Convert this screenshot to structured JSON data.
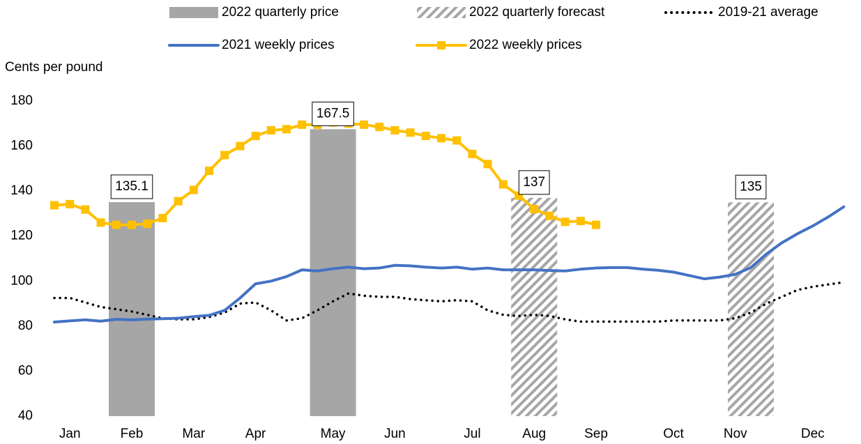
{
  "chart_data": {
    "type": "combo",
    "y_label": "Cents per pound",
    "categories": [
      null,
      "Jan",
      null,
      null,
      null,
      "Feb",
      null,
      null,
      null,
      "Mar",
      null,
      null,
      null,
      "Apr",
      null,
      null,
      null,
      null,
      "May",
      null,
      null,
      null,
      "Jun",
      null,
      null,
      null,
      null,
      "Jul",
      null,
      null,
      null,
      "Aug",
      null,
      null,
      null,
      "Sep",
      null,
      null,
      null,
      null,
      "Oct",
      null,
      null,
      null,
      "Nov",
      null,
      null,
      null,
      null,
      "Dec",
      null,
      null
    ],
    "ylim": [
      40,
      180
    ],
    "yticks": [
      40,
      60,
      80,
      100,
      120,
      140,
      160,
      180
    ],
    "series": [
      {
        "name": "2022 quarterly price",
        "type": "bar",
        "style": "solid",
        "color": "#a6a6a6",
        "values": [
          null,
          null,
          null,
          null,
          null,
          135.1,
          null,
          null,
          null,
          null,
          null,
          null,
          null,
          null,
          null,
          null,
          null,
          null,
          167.5,
          null,
          null,
          null,
          null,
          null,
          null,
          null,
          null,
          null,
          null,
          null,
          null,
          null,
          null,
          null,
          null,
          null,
          null,
          null,
          null,
          null,
          null,
          null,
          null,
          null,
          null,
          null,
          null,
          null,
          null,
          null,
          null,
          null
        ]
      },
      {
        "name": "2022 quarterly forecast",
        "type": "bar",
        "style": "hatched",
        "color": "#a6a6a6",
        "values": [
          null,
          null,
          null,
          null,
          null,
          null,
          null,
          null,
          null,
          null,
          null,
          null,
          null,
          null,
          null,
          null,
          null,
          null,
          null,
          null,
          null,
          null,
          null,
          null,
          null,
          null,
          null,
          null,
          null,
          null,
          null,
          137,
          null,
          null,
          null,
          null,
          null,
          null,
          null,
          null,
          null,
          null,
          null,
          null,
          null,
          135,
          null,
          null,
          null,
          null,
          null,
          null
        ]
      },
      {
        "name": "2019-21 average",
        "type": "line",
        "style": "dotted",
        "color": "#000000",
        "values": [
          92.5,
          92.5,
          90.5,
          88.5,
          87.5,
          86.5,
          85,
          83.5,
          83,
          83,
          84,
          86,
          90,
          90.5,
          87,
          82.5,
          83.5,
          87,
          91,
          94.5,
          93.5,
          93,
          93,
          92,
          91.5,
          91,
          91.5,
          91,
          87,
          85,
          84.5,
          85,
          84.5,
          83,
          82,
          82,
          82,
          82,
          82,
          82,
          82.5,
          82.5,
          82.5,
          82.5,
          83.5,
          86,
          90,
          93,
          96,
          97.5,
          98.5,
          99.5
        ]
      },
      {
        "name": "2021 weekly prices",
        "type": "line",
        "style": "solid",
        "color": "#4472c4",
        "values": [
          81.8,
          82.3,
          82.8,
          82.2,
          83,
          82.8,
          83.1,
          83.3,
          83.5,
          84.2,
          84.8,
          87,
          92.5,
          98.8,
          100,
          102,
          105,
          104.5,
          105.5,
          106.2,
          105.5,
          105.8,
          107,
          106.8,
          106.2,
          105.8,
          106.2,
          105.3,
          105.8,
          105,
          105,
          105,
          104.7,
          104.5,
          105.3,
          105.8,
          106,
          106,
          105.3,
          104.8,
          104,
          102.5,
          101,
          101.8,
          103,
          106,
          112,
          117,
          121,
          124.5,
          128.5,
          133
        ]
      },
      {
        "name": "2022 weekly prices",
        "type": "line",
        "style": "markers",
        "color": "#ffc000",
        "values": [
          133.7,
          134.2,
          131.8,
          126,
          125,
          125,
          125.5,
          128,
          135.5,
          140.5,
          149,
          156,
          160,
          164.5,
          167,
          167.5,
          169.5,
          169.5,
          170.5,
          170,
          169.5,
          168.5,
          167,
          166,
          164.5,
          163.5,
          162.5,
          156.5,
          152,
          143,
          138,
          132,
          129,
          126.3,
          126.7,
          125,
          null,
          null,
          null,
          null,
          null,
          null,
          null,
          null,
          null,
          null,
          null,
          null,
          null,
          null,
          null,
          null
        ]
      }
    ]
  }
}
